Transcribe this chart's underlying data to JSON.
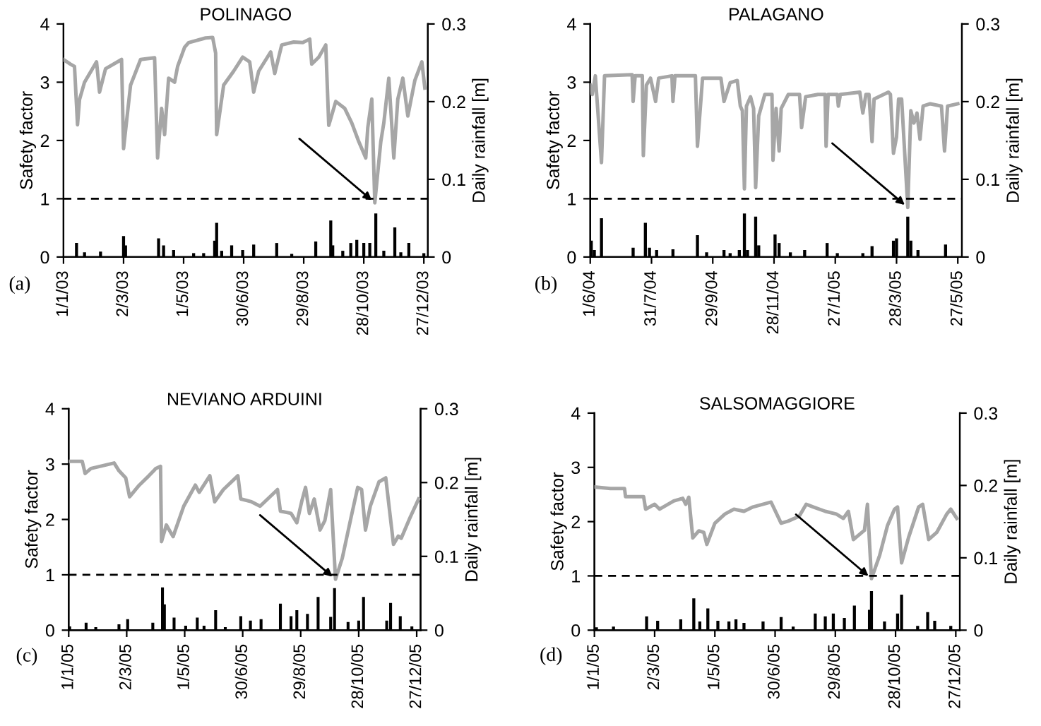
{
  "chart_data": [
    {
      "type": "line",
      "title": "POLINAGO",
      "ylabel": "Safety factor",
      "y2label": "Daily rainfall [m]",
      "xlim": [
        "2003-01-01",
        "2003-12-31"
      ],
      "xticks": [
        {
          "value": "2003-01-01",
          "label": "1/1/03"
        },
        {
          "value": "2003-03-02",
          "label": "2/3/03"
        },
        {
          "value": "2003-05-01",
          "label": "1/5/03"
        },
        {
          "value": "2003-06-30",
          "label": "30/6/03"
        },
        {
          "value": "2003-08-29",
          "label": "29/8/03"
        },
        {
          "value": "2003-10-28",
          "label": "28/10/03"
        },
        {
          "value": "2003-12-27",
          "label": "27/12/03"
        }
      ],
      "ylim": [
        0,
        4
      ],
      "yticks": [
        0,
        1,
        2,
        3,
        4
      ],
      "y2lim": [
        0,
        0.3
      ],
      "y2ticks": [
        0,
        0.1,
        0.2,
        0.3
      ],
      "grid": false,
      "legend": false,
      "ref_lines": [
        {
          "axis": "y",
          "value": 1,
          "color": "#000000",
          "line_style": "dashed"
        }
      ],
      "annotations": [
        "(a)"
      ],
      "series": [
        {
          "color": "#a6a6a6",
          "x": [
            "2003-01-01",
            "2003-01-08",
            "2003-01-12",
            "2003-01-15",
            "2003-01-17",
            "2003-01-22",
            "2003-02-03",
            "2003-02-06",
            "2003-02-12",
            "2003-02-28",
            "2003-03-02",
            "2003-03-09",
            "2003-03-19",
            "2003-04-02",
            "2003-04-05",
            "2003-04-09",
            "2003-04-12",
            "2003-04-16",
            "2003-04-22",
            "2003-04-25",
            "2003-05-02",
            "2003-05-06",
            "2003-05-23",
            "2003-05-30",
            "2003-06-02",
            "2003-06-03",
            "2003-06-10",
            "2003-06-20",
            "2003-06-29",
            "2003-07-06",
            "2003-07-10",
            "2003-07-15",
            "2003-07-27",
            "2003-07-31",
            "2003-08-07",
            "2003-08-19",
            "2003-08-28",
            "2003-09-04",
            "2003-09-06",
            "2003-09-13",
            "2003-09-20",
            "2003-09-23",
            "2003-09-30",
            "2003-10-09",
            "2003-10-16",
            "2003-10-23",
            "2003-10-30",
            "2003-11-01",
            "2003-11-05",
            "2003-11-08",
            "2003-11-14",
            "2003-11-17",
            "2003-11-22",
            "2003-11-27",
            "2003-12-01",
            "2003-12-06",
            "2003-12-11",
            "2003-12-18",
            "2003-12-25",
            "2003-12-28"
          ],
          "values": [
            3.39,
            3.31,
            3.27,
            2.27,
            2.7,
            3.0,
            3.35,
            2.83,
            3.23,
            3.39,
            1.86,
            2.95,
            3.39,
            3.42,
            1.7,
            2.55,
            2.1,
            3.07,
            3.0,
            3.27,
            3.6,
            3.68,
            3.76,
            3.77,
            3.5,
            2.1,
            2.95,
            3.19,
            3.43,
            3.35,
            2.83,
            3.19,
            3.52,
            3.15,
            3.64,
            3.69,
            3.68,
            3.74,
            3.31,
            3.43,
            3.64,
            2.26,
            2.67,
            2.55,
            2.3,
            1.98,
            1.7,
            2.22,
            2.71,
            0.93,
            1.98,
            2.3,
            3.07,
            1.7,
            2.71,
            3.07,
            2.42,
            3.03,
            3.35,
            2.9
          ]
        },
        {
          "type": "bar",
          "axis": "y2",
          "color": "#000000",
          "x": [
            "2003-01-14",
            "2003-01-22",
            "2003-02-07",
            "2003-03-02",
            "2003-03-04",
            "2003-04-06",
            "2003-04-11",
            "2003-04-21",
            "2003-05-11",
            "2003-05-21",
            "2003-06-01",
            "2003-06-03",
            "2003-06-08",
            "2003-06-18",
            "2003-06-29",
            "2003-07-10",
            "2003-08-02",
            "2003-08-17",
            "2003-08-24",
            "2003-09-10",
            "2003-09-25",
            "2003-09-27",
            "2003-10-07",
            "2003-10-15",
            "2003-10-21",
            "2003-10-28",
            "2003-11-03",
            "2003-11-09",
            "2003-11-17",
            "2003-11-28",
            "2003-12-04",
            "2003-12-12",
            "2003-12-27"
          ],
          "values": [
            0.018,
            0.006,
            0.007,
            0.027,
            0.015,
            0.024,
            0.015,
            0.009,
            0.005,
            0.005,
            0.021,
            0.044,
            0.008,
            0.015,
            0.009,
            0.016,
            0.018,
            0.004,
            null,
            0.02,
            0.047,
            0.015,
            0.008,
            0.018,
            0.022,
            0.018,
            0.018,
            0.056,
            0.008,
            0.038,
            0.006,
            0.018,
            0.005
          ]
        }
      ]
    },
    {
      "type": "line",
      "title": "PALAGANO",
      "ylabel": "Safety factor",
      "y2label": "Daily rainfall [m]",
      "xlim": [
        "2004-06-01",
        "2005-05-31"
      ],
      "xticks": [
        {
          "value": "2004-06-01",
          "label": "1/6/04"
        },
        {
          "value": "2004-07-31",
          "label": "31/7/04"
        },
        {
          "value": "2004-09-29",
          "label": "29/9/04"
        },
        {
          "value": "2004-11-28",
          "label": "28/11/04"
        },
        {
          "value": "2005-01-27",
          "label": "27/1/05"
        },
        {
          "value": "2005-03-28",
          "label": "28/3/05"
        },
        {
          "value": "2005-05-27",
          "label": "27/5/05"
        }
      ],
      "ylim": [
        0,
        4
      ],
      "yticks": [
        0,
        1,
        2,
        3,
        4
      ],
      "y2lim": [
        0,
        0.3
      ],
      "y2ticks": [
        0,
        0.1,
        0.2,
        0.3
      ],
      "grid": false,
      "legend": false,
      "ref_lines": [
        {
          "axis": "y",
          "value": 1,
          "color": "#000000",
          "line_style": "dashed"
        }
      ],
      "annotations": [
        "(b)"
      ],
      "series": [
        {
          "color": "#a6a6a6",
          "x": [
            "2004-06-01",
            "2004-06-03",
            "2004-06-06",
            "2004-06-12",
            "2004-06-15",
            "2004-07-12",
            "2004-07-13",
            "2004-07-15",
            "2004-07-22",
            "2004-07-23",
            "2004-07-26",
            "2004-07-30",
            "2004-08-04",
            "2004-08-07",
            "2004-08-20",
            "2004-08-21",
            "2004-08-23",
            "2004-09-12",
            "2004-09-14",
            "2004-09-19",
            "2004-10-07",
            "2004-10-10",
            "2004-10-16",
            "2004-10-23",
            "2004-10-26",
            "2004-10-28",
            "2004-10-30",
            "2004-11-01",
            "2004-11-05",
            "2004-11-08",
            "2004-11-10",
            "2004-11-13",
            "2004-11-19",
            "2004-11-26",
            "2004-11-27",
            "2004-11-30",
            "2004-12-03",
            "2004-12-05",
            "2004-12-12",
            "2004-12-23",
            "2004-12-25",
            "2004-12-29",
            "2005-01-10",
            "2005-01-17",
            "2005-01-18",
            "2005-01-20",
            "2005-01-29",
            "2005-01-30",
            "2005-02-01",
            "2005-02-20",
            "2005-02-23",
            "2005-02-26",
            "2005-03-01",
            "2005-03-04",
            "2005-03-06",
            "2005-03-20",
            "2005-03-22",
            "2005-03-25",
            "2005-03-28",
            "2005-03-30",
            "2005-04-02",
            "2005-04-08",
            "2005-04-11",
            "2005-04-14",
            "2005-04-17",
            "2005-04-20",
            "2005-04-23",
            "2005-04-30",
            "2005-05-11",
            "2005-05-14",
            "2005-05-17",
            "2005-05-27"
          ],
          "values": [
            2.95,
            2.79,
            3.11,
            1.62,
            3.11,
            3.13,
            2.67,
            3.11,
            3.11,
            1.74,
            2.95,
            3.07,
            2.67,
            3.07,
            3.11,
            2.67,
            3.11,
            3.11,
            1.9,
            3.07,
            3.07,
            2.67,
            2.99,
            3.03,
            2.59,
            2.51,
            1.17,
            2.59,
            2.75,
            2.55,
            1.19,
            2.42,
            2.79,
            2.79,
            1.66,
            2.55,
            1.82,
            2.55,
            2.79,
            2.79,
            2.22,
            2.75,
            2.79,
            2.79,
            1.9,
            2.79,
            2.79,
            2.59,
            2.79,
            2.83,
            2.47,
            2.79,
            2.79,
            1.98,
            2.71,
            2.83,
            2.79,
            1.78,
            2.06,
            2.71,
            2.71,
            0.85,
            2.51,
            2.3,
            2.47,
            2.02,
            2.59,
            2.63,
            2.59,
            1.82,
            2.59,
            2.63
          ]
        },
        {
          "type": "bar",
          "axis": "y2",
          "color": "#000000",
          "x": [
            "2004-06-02",
            "2004-06-05",
            "2004-06-12",
            "2004-06-21",
            "2004-07-13",
            "2004-07-25",
            "2004-07-29",
            "2004-08-05",
            "2004-08-21",
            "2004-09-14",
            "2004-09-23",
            "2004-10-10",
            "2004-10-16",
            "2004-10-25",
            "2004-10-30",
            "2004-11-02",
            "2004-11-10",
            "2004-11-13",
            "2004-11-29",
            "2004-12-03",
            "2004-12-14",
            "2004-12-28",
            "2005-01-19",
            "2005-01-29",
            "2005-02-23",
            "2005-03-04",
            "2005-03-25",
            "2005-03-28",
            "2005-04-08",
            "2005-04-11",
            "2005-04-18",
            "2005-05-15"
          ],
          "values": [
            0.021,
            0.009,
            0.05,
            null,
            0.012,
            0.044,
            0.012,
            0.009,
            0.01,
            0.028,
            0.006,
            0.009,
            0.005,
            0.009,
            0.056,
            0.009,
            0.052,
            0.015,
            0.029,
            0.018,
            0.006,
            0.009,
            0.018,
            0.005,
            0.005,
            0.014,
            0.021,
            0.024,
            0.052,
            0.021,
            0.009,
            0.016
          ]
        }
      ]
    },
    {
      "type": "line",
      "title": "NEVIANO ARDUINI",
      "ylabel": "Safety factor",
      "y2label": "Daily rainfall [m]",
      "xlim": [
        "2005-01-01",
        "2005-12-31"
      ],
      "xticks": [
        {
          "value": "2005-01-01",
          "label": "1/1/05"
        },
        {
          "value": "2005-03-02",
          "label": "2/3/05"
        },
        {
          "value": "2005-05-01",
          "label": "1/5/05"
        },
        {
          "value": "2005-06-30",
          "label": "30/6/05"
        },
        {
          "value": "2005-08-29",
          "label": "29/8/05"
        },
        {
          "value": "2005-10-28",
          "label": "28/10/05"
        },
        {
          "value": "2005-12-27",
          "label": "27/12/05"
        }
      ],
      "ylim": [
        0,
        4
      ],
      "yticks": [
        0,
        1,
        2,
        3,
        4
      ],
      "y2lim": [
        0,
        0.3
      ],
      "y2ticks": [
        0,
        0.1,
        0.2,
        0.3
      ],
      "grid": false,
      "legend": false,
      "ref_lines": [
        {
          "axis": "y",
          "value": 1,
          "color": "#000000",
          "line_style": "dashed"
        }
      ],
      "annotations": [
        "(c)"
      ],
      "series": [
        {
          "color": "#a6a6a6",
          "x": [
            "2005-01-01",
            "2005-01-15",
            "2005-01-18",
            "2005-01-24",
            "2005-02-17",
            "2005-02-22",
            "2005-03-01",
            "2005-03-05",
            "2005-03-15",
            "2005-03-25",
            "2005-03-30",
            "2005-04-01",
            "2005-04-06",
            "2005-04-07",
            "2005-04-12",
            "2005-04-15",
            "2005-04-19",
            "2005-04-30",
            "2005-05-12",
            "2005-05-16",
            "2005-05-27",
            "2005-06-01",
            "2005-06-10",
            "2005-06-25",
            "2005-06-28",
            "2005-07-09",
            "2005-07-18",
            "2005-08-05",
            "2005-08-08",
            "2005-08-19",
            "2005-08-25",
            "2005-08-30",
            "2005-09-03",
            "2005-09-07",
            "2005-09-12",
            "2005-09-18",
            "2005-09-23",
            "2005-09-29",
            "2005-10-04",
            "2005-10-11",
            "2005-10-20",
            "2005-10-27",
            "2005-10-31",
            "2005-11-04",
            "2005-11-09",
            "2005-11-18",
            "2005-11-25",
            "2005-12-03",
            "2005-12-08",
            "2005-12-11",
            "2005-12-20",
            "2005-12-29"
          ],
          "values": [
            3.05,
            3.05,
            2.83,
            2.92,
            3.02,
            2.88,
            2.75,
            2.41,
            2.62,
            2.79,
            2.88,
            2.92,
            2.96,
            1.6,
            1.9,
            1.81,
            1.69,
            2.24,
            2.62,
            2.49,
            2.79,
            2.32,
            2.54,
            2.79,
            2.37,
            2.32,
            2.24,
            2.54,
            2.15,
            2.11,
            1.94,
            2.32,
            2.58,
            2.11,
            2.37,
            1.81,
            1.98,
            2.54,
            0.92,
            1.3,
            2.03,
            2.58,
            2.54,
            1.81,
            2.24,
            2.68,
            2.75,
            1.55,
            1.7,
            1.66,
            2.03,
            2.37
          ]
        },
        {
          "type": "bar",
          "axis": "y2",
          "color": "#000000",
          "x": [
            "2005-01-02",
            "2005-01-19",
            "2005-01-29",
            "2005-02-22",
            "2005-03-03",
            "2005-03-29",
            "2005-04-08",
            "2005-04-10",
            "2005-04-20",
            "2005-05-02",
            "2005-05-14",
            "2005-05-21",
            "2005-06-02",
            "2005-06-12",
            "2005-06-28",
            "2005-07-08",
            "2005-07-19",
            "2005-08-08",
            "2005-08-19",
            "2005-08-25",
            "2005-09-05",
            "2005-09-16",
            "2005-09-29",
            "2005-10-03",
            "2005-10-17",
            "2005-10-28",
            "2005-11-02",
            "2005-11-26",
            "2005-11-30",
            "2005-12-10",
            "2005-12-22"
          ],
          "values": [
            0.005,
            0.01,
            0.004,
            0.008,
            0.015,
            0.01,
            0.058,
            0.035,
            0.017,
            0.006,
            0.017,
            0.006,
            0.027,
            0.004,
            0.019,
            0.013,
            0.015,
            0.036,
            0.019,
            0.027,
            0.022,
            0.045,
            0.018,
            0.057,
            0.011,
            0.013,
            0.045,
            0.013,
            0.037,
            0.019,
            0.005
          ]
        }
      ]
    },
    {
      "type": "line",
      "title": "SALSOMAGGIORE",
      "ylabel": "Safety factor",
      "y2label": "Daily rainfall [m]",
      "xlim": [
        "2005-01-01",
        "2005-12-31"
      ],
      "xticks": [
        {
          "value": "2005-01-01",
          "label": "1/1/05"
        },
        {
          "value": "2005-03-02",
          "label": "2/3/05"
        },
        {
          "value": "2005-05-01",
          "label": "1/5/05"
        },
        {
          "value": "2005-06-30",
          "label": "30/6/05"
        },
        {
          "value": "2005-08-29",
          "label": "29/8/05"
        },
        {
          "value": "2005-10-28",
          "label": "28/10/05"
        },
        {
          "value": "2005-12-27",
          "label": "27/12/05"
        }
      ],
      "ylim": [
        0,
        4
      ],
      "yticks": [
        0,
        1,
        2,
        3,
        4
      ],
      "y2lim": [
        0,
        0.3
      ],
      "y2ticks": [
        0,
        0.1,
        0.2,
        0.3
      ],
      "grid": false,
      "legend": false,
      "ref_lines": [
        {
          "axis": "y",
          "value": 1,
          "color": "#000000",
          "line_style": "dashed"
        }
      ],
      "annotations": [
        "(d)"
      ],
      "series": [
        {
          "color": "#a6a6a6",
          "x": [
            "2005-01-01",
            "2005-01-17",
            "2005-01-31",
            "2005-02-01",
            "2005-02-19",
            "2005-02-21",
            "2005-03-02",
            "2005-03-07",
            "2005-03-21",
            "2005-03-30",
            "2005-04-02",
            "2005-04-05",
            "2005-04-09",
            "2005-04-15",
            "2005-04-20",
            "2005-04-23",
            "2005-05-01",
            "2005-05-11",
            "2005-05-20",
            "2005-05-30",
            "2005-06-08",
            "2005-06-26",
            "2005-07-06",
            "2005-07-13",
            "2005-07-24",
            "2005-07-31",
            "2005-08-07",
            "2005-08-19",
            "2005-08-30",
            "2005-09-06",
            "2005-09-11",
            "2005-09-16",
            "2005-09-27",
            "2005-09-30",
            "2005-10-04",
            "2005-10-12",
            "2005-10-20",
            "2005-10-27",
            "2005-10-30",
            "2005-11-03",
            "2005-11-10",
            "2005-11-20",
            "2005-11-24",
            "2005-11-30",
            "2005-12-08",
            "2005-12-18",
            "2005-12-22",
            "2005-12-28"
          ],
          "values": [
            2.64,
            2.61,
            2.61,
            2.46,
            2.46,
            2.23,
            2.32,
            2.23,
            2.38,
            2.43,
            2.32,
            2.45,
            1.7,
            1.83,
            1.8,
            1.58,
            1.97,
            2.14,
            2.23,
            2.19,
            2.27,
            2.36,
            1.97,
            2.01,
            2.1,
            2.32,
            2.27,
            2.19,
            2.14,
            2.06,
            2.19,
            1.67,
            1.84,
            2.32,
            0.95,
            1.37,
            1.93,
            2.23,
            2.27,
            1.24,
            1.71,
            2.27,
            2.32,
            1.67,
            1.8,
            2.14,
            2.23,
            2.06
          ]
        },
        {
          "type": "bar",
          "axis": "y2",
          "color": "#000000",
          "x": [
            "2005-01-03",
            "2005-01-20",
            "2005-02-22",
            "2005-03-05",
            "2005-03-28",
            "2005-04-10",
            "2005-04-16",
            "2005-04-24",
            "2005-05-04",
            "2005-05-15",
            "2005-05-22",
            "2005-05-30",
            "2005-06-18",
            "2005-07-06",
            "2005-07-18",
            "2005-08-09",
            "2005-08-19",
            "2005-08-27",
            "2005-09-07",
            "2005-09-17",
            "2005-10-02",
            "2005-10-04",
            "2005-10-17",
            "2005-10-30",
            "2005-11-03",
            "2005-11-19",
            "2005-11-29",
            "2005-12-06",
            "2005-12-22"
          ],
          "values": [
            0.004,
            0.005,
            0.019,
            0.013,
            0.015,
            0.044,
            0.012,
            0.03,
            0.013,
            0.012,
            0.015,
            0.01,
            0.012,
            0.018,
            0.005,
            0.023,
            0.019,
            0.023,
            0.017,
            0.034,
            0.028,
            0.054,
            0.012,
            0.023,
            0.049,
            0.006,
            0.025,
            0.013,
            0.006
          ]
        }
      ]
    }
  ]
}
